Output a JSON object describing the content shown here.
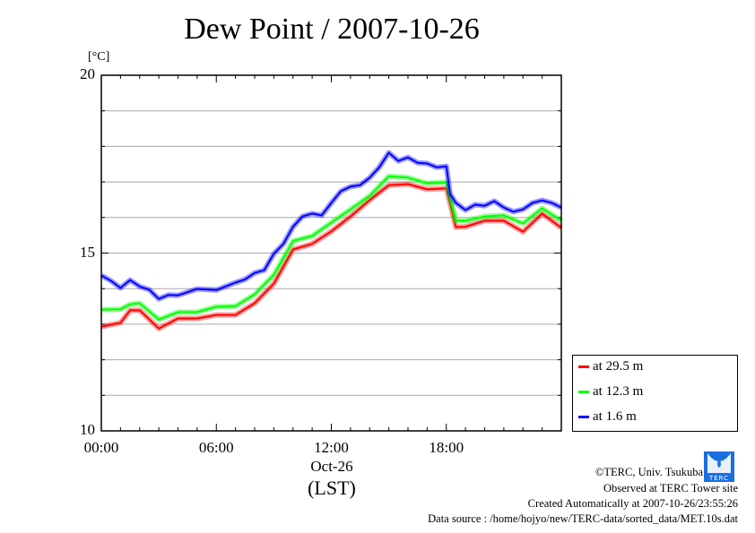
{
  "chart_data": {
    "type": "line",
    "title": "Dew Point / 2007-10-26",
    "ylabel": "[°C]",
    "xlabel": "(LST)",
    "date_label": "Oct-26",
    "xlim": [
      0,
      24
    ],
    "ylim": [
      10,
      20
    ],
    "x_ticks": [
      {
        "v": 0,
        "label": "00:00"
      },
      {
        "v": 6,
        "label": "06:00"
      },
      {
        "v": 12,
        "label": "12:00"
      },
      {
        "v": 18,
        "label": "18:00"
      }
    ],
    "y_ticks": [
      {
        "v": 10,
        "label": "10"
      },
      {
        "v": 15,
        "label": "15"
      },
      {
        "v": 20,
        "label": "20"
      }
    ],
    "grid": true,
    "legend_position": "right-bottom outside",
    "series": [
      {
        "name": "at 29.5 m",
        "color": "#ff0000",
        "x": [
          0,
          1,
          1.5,
          2,
          3,
          4,
          5,
          6,
          7,
          8,
          9,
          10,
          11,
          12,
          13,
          14,
          15,
          16,
          17,
          18,
          18.5,
          19,
          20,
          21,
          22,
          23,
          24
        ],
        "y": [
          12.97,
          13.0,
          13.43,
          13.35,
          12.92,
          13.12,
          13.2,
          13.22,
          13.3,
          13.55,
          14.18,
          15.06,
          15.3,
          15.57,
          16.07,
          16.45,
          16.95,
          16.9,
          16.83,
          16.78,
          15.77,
          15.7,
          15.95,
          15.87,
          15.64,
          16.07,
          15.75
        ]
      },
      {
        "name": "at 12.3 m",
        "color": "#00ff00",
        "x": [
          0,
          1,
          1.5,
          2,
          3,
          4,
          5,
          6,
          7,
          8,
          9,
          10,
          11,
          12,
          13,
          14,
          15,
          16,
          17,
          18,
          18.5,
          19,
          20,
          21,
          22,
          23,
          24
        ],
        "y": [
          13.45,
          13.38,
          13.6,
          13.55,
          13.17,
          13.3,
          13.38,
          13.45,
          13.55,
          13.8,
          14.43,
          15.3,
          15.52,
          15.82,
          16.27,
          16.57,
          17.2,
          17.08,
          17.0,
          16.95,
          15.95,
          15.87,
          16.07,
          16.02,
          15.87,
          16.22,
          15.95
        ]
      },
      {
        "name": "at 1.6 m",
        "color": "#0000ff",
        "x": [
          0,
          0.5,
          1,
          1.5,
          2,
          2.5,
          3,
          3.5,
          4,
          5,
          6,
          7,
          7.5,
          8,
          8.5,
          9,
          9.5,
          10,
          10.5,
          11,
          11.5,
          12,
          12.5,
          13,
          13.5,
          14,
          14.5,
          15,
          15.5,
          16,
          16.5,
          17,
          17.5,
          18,
          18.2,
          18.5,
          19,
          19.5,
          20,
          20.5,
          21,
          21.5,
          22,
          22.5,
          23,
          23.5,
          24
        ],
        "y": [
          14.41,
          14.18,
          14.06,
          14.2,
          14.1,
          13.93,
          13.75,
          13.78,
          13.85,
          13.95,
          14.0,
          14.13,
          14.3,
          14.4,
          14.56,
          14.94,
          15.3,
          15.7,
          16.07,
          16.07,
          16.1,
          16.37,
          16.78,
          16.83,
          16.95,
          17.08,
          17.45,
          17.78,
          17.63,
          17.65,
          17.58,
          17.48,
          17.45,
          17.4,
          16.7,
          16.37,
          16.25,
          16.32,
          16.37,
          16.42,
          16.32,
          16.12,
          16.27,
          16.37,
          16.52,
          16.37,
          16.32
        ]
      }
    ]
  },
  "footer": {
    "copyright": "©TERC, Univ. Tsukuba",
    "observed": "Observed at TERC Tower site",
    "created": "Created Automatically at 2007-10-26/23:55:26",
    "source": "Data source : /home/hojyo/new/TERC-data/sorted_data/MET.10s.dat",
    "logo_text": "TERC"
  }
}
